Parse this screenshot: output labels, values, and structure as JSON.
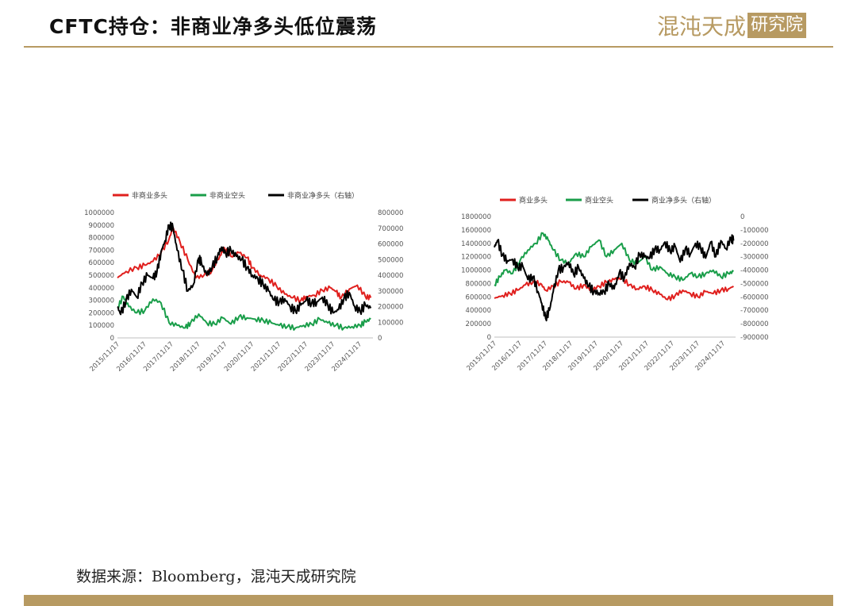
{
  "header": {
    "title": "CFTC持仓：非商业净多头低位震荡",
    "logo_brand": "混沌天成",
    "logo_stamp": "研究院",
    "accent_color": "#b79a62"
  },
  "footer": {
    "source": "数据来源：Bloomberg，混沌天成研究院"
  },
  "chart_data": [
    {
      "type": "line",
      "x_labels": [
        "2015/11/17",
        "2016/11/17",
        "2017/11/17",
        "2018/11/17",
        "2019/11/17",
        "2020/11/17",
        "2021/11/17",
        "2022/11/17",
        "2023/11/17",
        "2024/11/17"
      ],
      "y_left": {
        "min": 0,
        "max": 1000000,
        "step": 100000,
        "ticks": [
          "0",
          "100000",
          "200000",
          "300000",
          "400000",
          "500000",
          "600000",
          "700000",
          "800000",
          "900000",
          "1000000"
        ]
      },
      "y_right": {
        "min": 0,
        "max": 800000,
        "step": 100000,
        "ticks": [
          "0",
          "100000",
          "200000",
          "300000",
          "400000",
          "500000",
          "600000",
          "700000",
          "800000"
        ]
      },
      "legend_position": "top",
      "series": [
        {
          "name": "非商业多头",
          "color": "#e0201e",
          "axis": "left",
          "x": [
            2015.88,
            2016.2,
            2016.6,
            2016.9,
            2017.2,
            2017.5,
            2017.8,
            2017.95,
            2018.2,
            2018.5,
            2018.8,
            2019.1,
            2019.4,
            2019.7,
            2019.85,
            2020.1,
            2020.4,
            2020.7,
            2020.9,
            2021.2,
            2021.5,
            2021.8,
            2022.1,
            2022.4,
            2022.7,
            2022.9,
            2023.2,
            2023.5,
            2023.8,
            2024.0,
            2024.2,
            2024.5,
            2024.8,
            2025.1,
            2025.3
          ],
          "y": [
            480000,
            530000,
            560000,
            580000,
            610000,
            680000,
            790000,
            880000,
            770000,
            620000,
            480000,
            500000,
            540000,
            660000,
            720000,
            650000,
            680000,
            640000,
            560000,
            500000,
            470000,
            410000,
            350000,
            320000,
            300000,
            330000,
            340000,
            380000,
            400000,
            370000,
            320000,
            390000,
            420000,
            330000,
            320000
          ]
        },
        {
          "name": "非商业空头",
          "color": "#1a9e4a",
          "axis": "left",
          "x": [
            2015.88,
            2016.1,
            2016.3,
            2016.6,
            2016.9,
            2017.2,
            2017.5,
            2017.8,
            2018.1,
            2018.4,
            2018.6,
            2018.9,
            2019.2,
            2019.5,
            2019.8,
            2020.1,
            2020.4,
            2020.7,
            2021.0,
            2021.3,
            2021.6,
            2021.9,
            2022.2,
            2022.5,
            2022.8,
            2023.1,
            2023.4,
            2023.7,
            2024.0,
            2024.3,
            2024.6,
            2024.9,
            2025.1,
            2025.3
          ],
          "y": [
            240000,
            330000,
            250000,
            200000,
            220000,
            310000,
            280000,
            120000,
            100000,
            80000,
            120000,
            190000,
            120000,
            110000,
            160000,
            110000,
            170000,
            160000,
            150000,
            140000,
            120000,
            100000,
            90000,
            80000,
            100000,
            110000,
            150000,
            120000,
            100000,
            80000,
            90000,
            100000,
            130000,
            150000
          ]
        },
        {
          "name": "非商业净多头（右轴）",
          "color": "#000000",
          "axis": "right",
          "x": [
            2015.88,
            2016.0,
            2016.2,
            2016.4,
            2016.6,
            2016.8,
            2017.0,
            2017.2,
            2017.35,
            2017.5,
            2017.65,
            2017.8,
            2017.95,
            2018.1,
            2018.3,
            2018.5,
            2018.7,
            2018.9,
            2019.0,
            2019.2,
            2019.4,
            2019.6,
            2019.75,
            2019.9,
            2020.1,
            2020.3,
            2020.5,
            2020.7,
            2020.9,
            2021.1,
            2021.3,
            2021.5,
            2021.7,
            2021.9,
            2022.1,
            2022.3,
            2022.5,
            2022.7,
            2022.9,
            2023.1,
            2023.3,
            2023.5,
            2023.7,
            2023.9,
            2024.1,
            2024.3,
            2024.5,
            2024.7,
            2024.9,
            2025.1,
            2025.3
          ],
          "y": [
            200000,
            150000,
            240000,
            310000,
            260000,
            350000,
            400000,
            380000,
            420000,
            550000,
            620000,
            720000,
            700000,
            560000,
            430000,
            300000,
            340000,
            510000,
            480000,
            400000,
            450000,
            520000,
            580000,
            540000,
            560000,
            520000,
            500000,
            450000,
            400000,
            380000,
            340000,
            300000,
            240000,
            230000,
            250000,
            200000,
            170000,
            210000,
            240000,
            220000,
            230000,
            260000,
            210000,
            160000,
            180000,
            250000,
            290000,
            200000,
            170000,
            210000,
            190000
          ]
        }
      ]
    },
    {
      "type": "line",
      "x_labels": [
        "2015/11/17",
        "2016/11/17",
        "2017/11/17",
        "2018/11/17",
        "2019/11/17",
        "2020/11/17",
        "2021/11/17",
        "2022/11/17",
        "2023/11/17",
        "2024/11/17"
      ],
      "y_left": {
        "min": 0,
        "max": 1800000,
        "step": 200000,
        "ticks": [
          "0",
          "200000",
          "400000",
          "600000",
          "800000",
          "1000000",
          "1200000",
          "1400000",
          "1600000",
          "1800000"
        ]
      },
      "y_right": {
        "min": -900000,
        "max": 0,
        "step": 100000,
        "ticks": [
          "0",
          "-100000",
          "-200000",
          "-300000",
          "-400000",
          "-500000",
          "-600000",
          "-700000",
          "-800000",
          "-900000"
        ]
      },
      "legend_position": "top",
      "series": [
        {
          "name": "商业多头",
          "color": "#e0201e",
          "axis": "left",
          "x": [
            2015.88,
            2016.2,
            2016.5,
            2016.8,
            2017.1,
            2017.4,
            2017.7,
            2017.9,
            2018.2,
            2018.5,
            2018.8,
            2019.1,
            2019.4,
            2019.7,
            2020.0,
            2020.3,
            2020.6,
            2020.9,
            2021.2,
            2021.5,
            2021.8,
            2022.1,
            2022.4,
            2022.7,
            2023.0,
            2023.3,
            2023.6,
            2023.9,
            2024.2,
            2024.5,
            2024.8,
            2025.1,
            2025.3
          ],
          "y": [
            580000,
            620000,
            650000,
            700000,
            780000,
            820000,
            800000,
            700000,
            760000,
            830000,
            820000,
            720000,
            780000,
            700000,
            760000,
            820000,
            860000,
            880000,
            780000,
            720000,
            760000,
            700000,
            640000,
            560000,
            620000,
            700000,
            650000,
            600000,
            680000,
            650000,
            700000,
            720000,
            760000
          ]
        },
        {
          "name": "商业空头",
          "color": "#1a9e4a",
          "axis": "left",
          "x": [
            2015.88,
            2016.1,
            2016.3,
            2016.6,
            2016.9,
            2017.2,
            2017.5,
            2017.8,
            2018.0,
            2018.2,
            2018.5,
            2018.8,
            2019.1,
            2019.4,
            2019.7,
            2020.0,
            2020.3,
            2020.6,
            2020.9,
            2021.2,
            2021.5,
            2021.8,
            2022.1,
            2022.4,
            2022.7,
            2023.0,
            2023.3,
            2023.6,
            2023.9,
            2024.2,
            2024.5,
            2024.8,
            2025.1,
            2025.3
          ],
          "y": [
            780000,
            900000,
            1000000,
            950000,
            1150000,
            1300000,
            1400000,
            1550000,
            1450000,
            1300000,
            1150000,
            1100000,
            1250000,
            1200000,
            1350000,
            1450000,
            1200000,
            1300000,
            1400000,
            1150000,
            1100000,
            1200000,
            1000000,
            1050000,
            950000,
            900000,
            850000,
            950000,
            900000,
            950000,
            1000000,
            900000,
            950000,
            980000
          ]
        },
        {
          "name": "商业净多头（右轴）",
          "color": "#000000",
          "axis": "right",
          "x": [
            2015.88,
            2016.0,
            2016.2,
            2016.4,
            2016.6,
            2016.8,
            2017.0,
            2017.2,
            2017.4,
            2017.6,
            2017.75,
            2017.9,
            2018.05,
            2018.2,
            2018.4,
            2018.6,
            2018.8,
            2019.0,
            2019.2,
            2019.4,
            2019.6,
            2019.8,
            2020.0,
            2020.2,
            2020.4,
            2020.6,
            2020.8,
            2021.0,
            2021.2,
            2021.4,
            2021.6,
            2021.8,
            2022.0,
            2022.2,
            2022.4,
            2022.6,
            2022.8,
            2023.0,
            2023.2,
            2023.4,
            2023.6,
            2023.8,
            2024.0,
            2024.2,
            2024.4,
            2024.6,
            2024.8,
            2025.0,
            2025.2,
            2025.3
          ],
          "y": [
            -230000,
            -180000,
            -290000,
            -330000,
            -320000,
            -380000,
            -370000,
            -470000,
            -450000,
            -560000,
            -650000,
            -760000,
            -700000,
            -560000,
            -400000,
            -380000,
            -340000,
            -430000,
            -380000,
            -460000,
            -520000,
            -560000,
            -570000,
            -560000,
            -500000,
            -540000,
            -420000,
            -460000,
            -350000,
            -380000,
            -280000,
            -300000,
            -310000,
            -240000,
            -250000,
            -190000,
            -260000,
            -220000,
            -340000,
            -240000,
            -280000,
            -200000,
            -230000,
            -310000,
            -190000,
            -300000,
            -180000,
            -240000,
            -160000,
            -180000
          ]
        }
      ]
    }
  ]
}
